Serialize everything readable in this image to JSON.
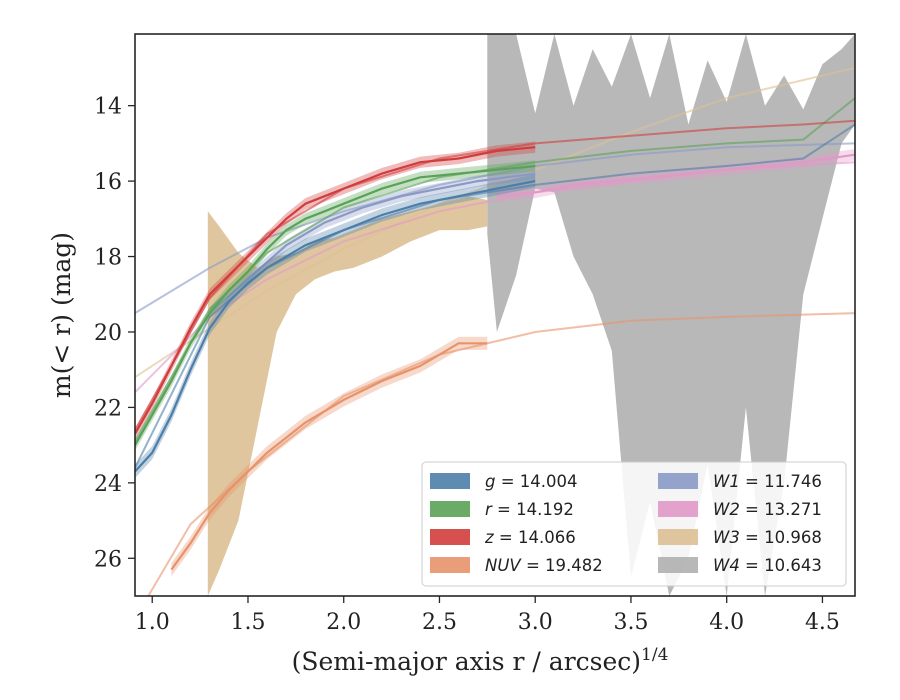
{
  "chart_data": {
    "type": "line",
    "title": "",
    "xlabel": "(Semi-major axis r / arcsec)",
    "xlabel_exponent": "1/4",
    "ylabel": "m(< r) (mag)",
    "xlim": [
      0.91,
      4.67
    ],
    "ylim": [
      27.0,
      12.1
    ],
    "y_inverted": true,
    "grid": false,
    "legend_position": "lower-right",
    "legend_columns": 2,
    "x_ticks": [
      1.0,
      1.5,
      2.0,
      2.5,
      3.0,
      3.5,
      4.0,
      4.5
    ],
    "x_tick_labels": [
      "1.0",
      "1.5",
      "2.0",
      "2.5",
      "3.0",
      "3.5",
      "4.0",
      "4.5"
    ],
    "y_ticks": [
      14,
      16,
      18,
      20,
      22,
      24,
      26
    ],
    "y_tick_labels": [
      "14",
      "16",
      "18",
      "20",
      "22",
      "24",
      "26"
    ],
    "series": [
      {
        "name": "g = 14.004",
        "band": "g",
        "value": "14.004",
        "color": "#4c7ea9",
        "x": [
          0.91,
          1.0,
          1.1,
          1.2,
          1.3,
          1.4,
          1.5,
          1.6,
          1.7,
          1.8,
          1.9,
          2.0,
          2.2,
          2.4,
          2.6,
          2.8,
          3.0
        ],
        "y": [
          23.7,
          23.2,
          22.2,
          21.0,
          19.9,
          19.2,
          18.7,
          18.3,
          18.0,
          17.7,
          17.5,
          17.3,
          16.9,
          16.6,
          16.4,
          16.2,
          16.0
        ],
        "band_width": 0.35,
        "model_x": [
          0.91,
          1.3,
          1.6,
          2.0,
          2.5,
          3.0,
          3.5,
          4.0,
          4.4,
          4.67
        ],
        "model_y": [
          23.6,
          19.6,
          18.3,
          17.3,
          16.5,
          16.1,
          15.8,
          15.6,
          15.4,
          14.5
        ]
      },
      {
        "name": "r = 14.192",
        "band": "r",
        "value": "14.192",
        "color": "#5aa258",
        "x": [
          0.91,
          1.0,
          1.1,
          1.2,
          1.3,
          1.4,
          1.5,
          1.6,
          1.7,
          1.8,
          1.9,
          2.0,
          2.2,
          2.4,
          2.6,
          2.8,
          3.0
        ],
        "y": [
          23.0,
          22.2,
          21.3,
          20.3,
          19.5,
          18.9,
          18.4,
          17.8,
          17.3,
          17.0,
          16.8,
          16.6,
          16.2,
          15.9,
          15.8,
          15.7,
          15.6
        ],
        "band_width": 0.3,
        "model_x": [
          0.91,
          1.3,
          1.6,
          2.0,
          2.5,
          3.0,
          3.5,
          4.0,
          4.4,
          4.67
        ],
        "model_y": [
          22.9,
          19.4,
          17.9,
          16.7,
          15.9,
          15.5,
          15.2,
          15.0,
          14.9,
          13.8
        ]
      },
      {
        "name": "z = 14.066",
        "band": "z",
        "value": "14.066",
        "color": "#d13d3d",
        "x": [
          0.91,
          1.0,
          1.1,
          1.2,
          1.3,
          1.4,
          1.5,
          1.6,
          1.7,
          1.8,
          1.9,
          2.0,
          2.2,
          2.4,
          2.6,
          2.8,
          3.0
        ],
        "y": [
          22.7,
          21.9,
          20.9,
          19.9,
          19.0,
          18.5,
          18.0,
          17.5,
          17.0,
          16.6,
          16.4,
          16.2,
          15.8,
          15.5,
          15.4,
          15.2,
          15.1
        ],
        "band_width": 0.3,
        "model_x": [
          0.91,
          1.3,
          1.6,
          2.0,
          2.5,
          3.0,
          3.5,
          4.0,
          4.4,
          4.67
        ],
        "model_y": [
          22.6,
          19.1,
          17.4,
          16.2,
          15.4,
          15.0,
          14.8,
          14.6,
          14.5,
          14.4
        ]
      },
      {
        "name": "NUV = 19.482",
        "band": "NUV",
        "value": "19.482",
        "color": "#e8926a",
        "x": [
          1.1,
          1.2,
          1.3,
          1.4,
          1.5,
          1.6,
          1.7,
          1.8,
          1.9,
          2.0,
          2.2,
          2.4,
          2.6,
          2.75
        ],
        "y": [
          26.3,
          25.6,
          24.8,
          24.2,
          23.7,
          23.2,
          22.8,
          22.4,
          22.1,
          21.8,
          21.3,
          20.9,
          20.3,
          20.3
        ],
        "band_width": 0.35,
        "model_x": [
          0.91,
          1.2,
          1.5,
          2.0,
          2.5,
          3.0,
          3.5,
          4.0,
          4.67
        ],
        "model_y": [
          27.6,
          25.1,
          23.7,
          21.7,
          20.6,
          20.0,
          19.7,
          19.6,
          19.5
        ]
      },
      {
        "name": "W1 = 11.746",
        "band": "W1",
        "value": "11.746",
        "color": "#8a9ac6",
        "x": [
          1.3,
          1.5,
          1.7,
          1.9,
          2.1,
          2.3,
          2.5,
          2.7,
          3.0
        ],
        "y": [
          19.5,
          18.6,
          17.7,
          17.1,
          16.7,
          16.4,
          16.2,
          16.0,
          15.8
        ],
        "band_width": 0.3,
        "model_x": [
          0.91,
          1.3,
          1.6,
          2.0,
          2.5,
          3.0,
          3.5,
          4.0,
          4.67
        ],
        "model_y": [
          19.5,
          18.3,
          17.5,
          16.8,
          16.1,
          15.6,
          15.3,
          15.1,
          15.0
        ]
      },
      {
        "name": "W2 = 13.271",
        "band": "W2",
        "value": "13.271",
        "color": "#e199c8",
        "x": [
          2.8,
          3.0,
          3.2,
          3.4,
          3.6,
          3.8,
          4.0,
          4.2,
          4.4,
          4.67
        ],
        "y": [
          16.4,
          16.3,
          16.1,
          16.0,
          15.9,
          15.8,
          15.7,
          15.6,
          15.5,
          15.3
        ],
        "band_width": 0.3,
        "model_x": [
          0.91,
          1.3,
          1.6,
          2.0,
          2.5,
          3.0,
          3.5,
          4.0,
          4.67
        ],
        "model_y": [
          21.6,
          19.6,
          18.6,
          17.6,
          16.8,
          16.3,
          16.0,
          15.7,
          15.5
        ]
      },
      {
        "name": "W3 = 10.968",
        "band": "W3",
        "value": "10.968",
        "color": "#ddc094",
        "x": [
          1.29,
          1.35,
          1.45,
          1.55,
          1.65,
          1.75,
          1.85,
          1.95,
          2.05,
          2.2,
          2.35,
          2.5,
          2.65,
          2.75
        ],
        "y_top": [
          16.8,
          17.2,
          17.9,
          18.3,
          18.0,
          17.9,
          17.6,
          17.5,
          17.3,
          17.0,
          16.8,
          16.6,
          16.4,
          16.5
        ],
        "y_bottom": [
          27.0,
          26.3,
          25.0,
          22.5,
          20.0,
          19.0,
          18.6,
          18.4,
          18.3,
          18.0,
          17.6,
          17.3,
          17.3,
          17.2
        ],
        "model_x": [
          0.91,
          1.3,
          1.6,
          2.0,
          2.5,
          3.0,
          3.5,
          4.0,
          4.67
        ],
        "model_y": [
          21.2,
          19.9,
          18.9,
          17.8,
          16.6,
          15.7,
          14.7,
          13.8,
          13.0
        ]
      },
      {
        "name": "W4 = 10.643",
        "band": "W4",
        "value": "10.643",
        "color": "#b0b0b0",
        "x": [
          2.75,
          2.8,
          2.9,
          3.0,
          3.1,
          3.2,
          3.3,
          3.4,
          3.5,
          3.6,
          3.7,
          3.8,
          3.9,
          4.0,
          4.1,
          4.2,
          4.3,
          4.4,
          4.5,
          4.6,
          4.67
        ],
        "y_top": [
          12.1,
          12.1,
          12.1,
          14.2,
          12.1,
          14.0,
          12.5,
          13.5,
          12.1,
          13.8,
          12.1,
          14.5,
          12.8,
          13.9,
          12.1,
          14.0,
          13.2,
          14.1,
          12.9,
          12.5,
          12.1
        ],
        "y_bottom": [
          17.4,
          20.0,
          18.5,
          16.2,
          16.3,
          18.0,
          19.0,
          20.5,
          26.5,
          24.5,
          27.0,
          26.0,
          23.5,
          27.0,
          22.0,
          27.0,
          24.0,
          19.0,
          17.0,
          15.0,
          14.5
        ],
        "model_x": [],
        "model_y": []
      }
    ]
  }
}
